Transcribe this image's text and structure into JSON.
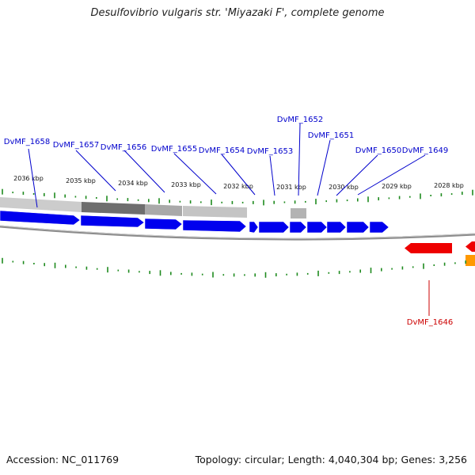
{
  "title": "Desulfovibrio vulgaris str. 'Miyazaki F', complete genome",
  "footer": {
    "accession": "Accession: NC_011769",
    "summary": "Topology: circular; Length: 4,040,304 bp; Genes: 3,256"
  },
  "colors": {
    "forward_gene": "#0000ee",
    "reverse_gene": "#ee0000",
    "orange_feature": "#ff9900",
    "tick": "#1e8a1e",
    "backbone": "#888888",
    "label_forward": "#0000cc",
    "label_reverse": "#cc0000"
  },
  "ruler_labels": [
    "2036 kbp",
    "2035 kbp",
    "2034 kbp",
    "2033 kbp",
    "2032 kbp",
    "2031 kbp",
    "2030 kbp",
    "2029 kbp",
    "2028 kbp"
  ],
  "gene_labels": [
    {
      "text": "DvMF_1658",
      "strand": "forward"
    },
    {
      "text": "DvMF_1657",
      "strand": "forward"
    },
    {
      "text": "DvMF_1656",
      "strand": "forward"
    },
    {
      "text": "DvMF_1655",
      "strand": "forward"
    },
    {
      "text": "DvMF_1654",
      "strand": "forward"
    },
    {
      "text": "DvMF_1653",
      "strand": "forward"
    },
    {
      "text": "DvMF_1652",
      "strand": "forward"
    },
    {
      "text": "DvMF_1651",
      "strand": "forward"
    },
    {
      "text": "DvMF_1650",
      "strand": "forward"
    },
    {
      "text": "DvMF_1649",
      "strand": "forward"
    },
    {
      "text": "DvMF_1646",
      "strand": "reverse"
    }
  ]
}
